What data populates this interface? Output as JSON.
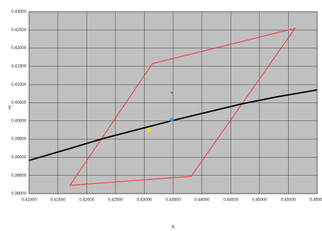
{
  "chart_data": {
    "type": "line",
    "x_label": "x",
    "y_label": "y",
    "xlim": [
      0.41,
      0.46
    ],
    "ylim": [
      0.38,
      0.43
    ],
    "xticks": [
      {
        "value": 0.41,
        "label": "0.41000"
      },
      {
        "value": 0.415,
        "label": "0.41500"
      },
      {
        "value": 0.42,
        "label": "0.42000"
      },
      {
        "value": 0.425,
        "label": "0.42500"
      },
      {
        "value": 0.43,
        "label": "0.43000"
      },
      {
        "value": 0.435,
        "label": "0.43500"
      },
      {
        "value": 0.44,
        "label": "0.44000"
      },
      {
        "value": 0.445,
        "label": "0.44500"
      },
      {
        "value": 0.45,
        "label": "0.45000"
      },
      {
        "value": 0.455,
        "label": "0.45500"
      },
      {
        "value": 0.46,
        "label": "0.46000"
      }
    ],
    "yticks": [
      {
        "value": 0.38,
        "label": "0.38000"
      },
      {
        "value": 0.385,
        "label": "0.38500"
      },
      {
        "value": 0.39,
        "label": "0.39000"
      },
      {
        "value": 0.395,
        "label": "0.39500"
      },
      {
        "value": 0.4,
        "label": "0.40000"
      },
      {
        "value": 0.405,
        "label": "0.40500"
      },
      {
        "value": 0.41,
        "label": "0.41000"
      },
      {
        "value": 0.415,
        "label": "0.41500"
      },
      {
        "value": 0.42,
        "label": "0.42000"
      },
      {
        "value": 0.425,
        "label": "0.42500"
      },
      {
        "value": 0.43,
        "label": "0.43000"
      }
    ],
    "grid": true,
    "series": [
      {
        "color": "#e8433f",
        "mode": "lines",
        "x": [
          0.41709,
          0.43139,
          0.45615,
          0.43813,
          0.41709
        ],
        "values": [
          0.38228,
          0.41574,
          0.42544,
          0.38475,
          0.38228
        ]
      },
      {
        "color": "#000000",
        "mode": "lines",
        "x": [
          0.41,
          0.41697,
          0.42298,
          0.42899,
          0.435,
          0.44101,
          0.44702,
          0.45303,
          0.46
        ],
        "values": [
          0.38913,
          0.39236,
          0.39521,
          0.39768,
          0.40015,
          0.40243,
          0.40471,
          0.40662,
          0.40852
        ]
      },
      {
        "color": "#f0e020",
        "mode": "markers",
        "x": [
          0.43079
        ],
        "values": [
          0.39749
        ]
      },
      {
        "color": "#3aa0c8",
        "mode": "markers",
        "x": [
          0.43476
        ],
        "values": [
          0.40034
        ]
      },
      {
        "color": "#3a80c8",
        "mode": "markers",
        "x": [
          0.43476
        ],
        "values": [
          0.40776
        ]
      }
    ]
  }
}
